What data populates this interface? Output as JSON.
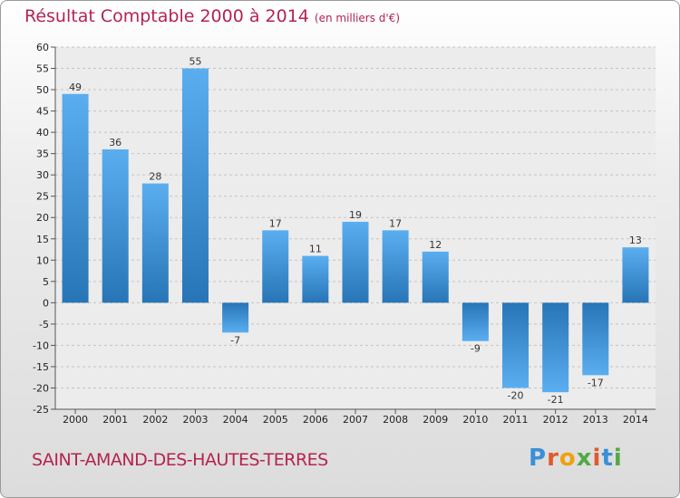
{
  "chart_data": {
    "type": "bar",
    "title": "Résultat Comptable 2000 à 2014",
    "subtitle": "(en milliers d'€)",
    "xlabel": "",
    "ylabel": "",
    "categories": [
      "2000",
      "2001",
      "2002",
      "2003",
      "2004",
      "2005",
      "2006",
      "2007",
      "2008",
      "2009",
      "2010",
      "2011",
      "2012",
      "2013",
      "2014"
    ],
    "values": [
      49,
      36,
      28,
      55,
      -7,
      17,
      11,
      19,
      17,
      12,
      -9,
      -20,
      -21,
      -17,
      13
    ],
    "ylim": [
      -25,
      60
    ],
    "yticks": [
      -25,
      -20,
      -15,
      -10,
      -5,
      0,
      5,
      10,
      15,
      20,
      25,
      30,
      35,
      40,
      45,
      50,
      55,
      60
    ],
    "grid": true,
    "legend": "none",
    "colors": {
      "bar_light": "#5aaef0",
      "bar_dark": "#2775b6",
      "title": "#b5234f"
    }
  },
  "footer": {
    "commune": "SAINT-AMAND-DES-HAUTES-TERRES",
    "logo": {
      "letters": [
        "P",
        "r",
        "o",
        "x",
        "i",
        "t",
        "i"
      ],
      "colors": [
        "#3a8fd8",
        "#e2592a",
        "#f0a10c",
        "#54a845",
        "#e2592a",
        "#3a8fd8",
        "#54a845"
      ]
    }
  }
}
